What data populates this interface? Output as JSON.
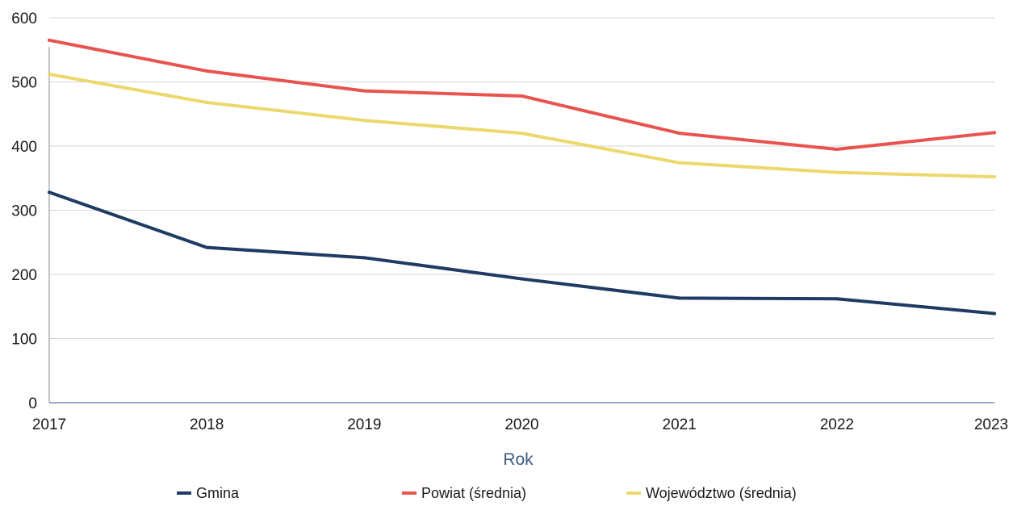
{
  "chart_data": {
    "type": "line",
    "title": "",
    "xlabel": "Rok",
    "ylabel": "",
    "x": [
      "2017",
      "2018",
      "2019",
      "2020",
      "2021",
      "2022",
      "2023"
    ],
    "ylim": [
      0,
      600
    ],
    "yticks": [
      "0",
      "100",
      "200",
      "300",
      "400",
      "500",
      "600"
    ],
    "grid": true,
    "legend_position": "bottom",
    "series": [
      {
        "name": "Gmina",
        "color": "#1f3b63",
        "values": [
          328,
          242,
          226,
          193,
          163,
          162,
          139
        ]
      },
      {
        "name": "Powiat (średnia)",
        "color": "#e8534f",
        "values": [
          565,
          517,
          486,
          478,
          420,
          395,
          421
        ]
      },
      {
        "name": "Województwo (średnia)",
        "color": "#ecd86c",
        "values": [
          512,
          468,
          440,
          420,
          374,
          359,
          352
        ]
      }
    ]
  }
}
